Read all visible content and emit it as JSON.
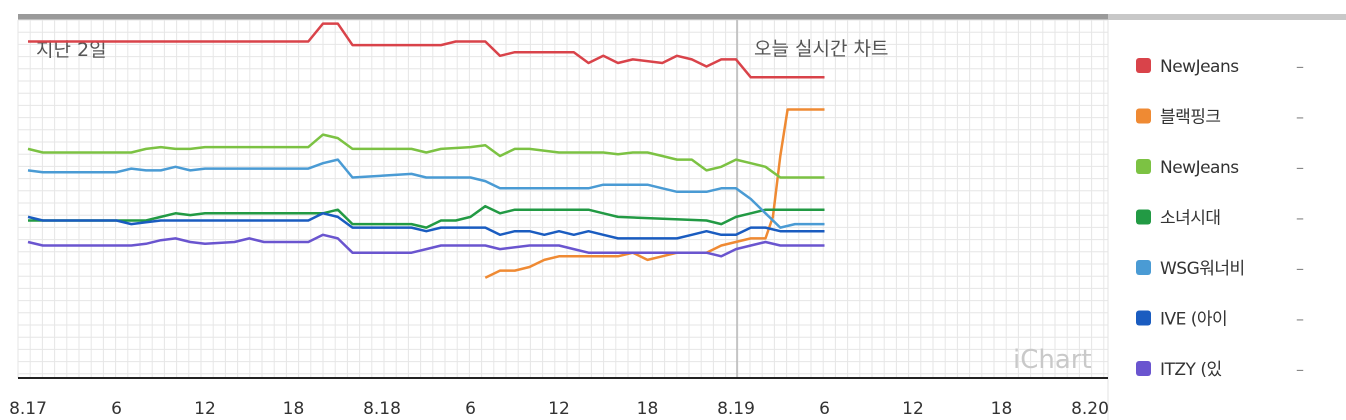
{
  "chart_data": {
    "type": "line",
    "left_label": "지난 2일",
    "center_label": "오늘 실시간 차트",
    "watermark": "iChart",
    "x_ticks": [
      "8.17",
      "6",
      "12",
      "18",
      "8.18",
      "6",
      "12",
      "18",
      "8.19",
      "6",
      "12",
      "18",
      "8.20"
    ],
    "x_unit": "hours since 8.17 00:00",
    "x_range": [
      0,
      72
    ],
    "y_range": [
      0,
      100
    ],
    "grid": true,
    "legend_position": "right",
    "series": [
      {
        "name": "NewJeans",
        "color": "#d9434a",
        "value_label": "–",
        "points": [
          [
            0,
            94
          ],
          [
            19,
            94
          ],
          [
            20,
            99
          ],
          [
            21,
            99
          ],
          [
            22,
            93
          ],
          [
            28,
            93
          ],
          [
            29,
            94
          ],
          [
            31,
            94
          ],
          [
            32,
            90
          ],
          [
            33,
            91
          ],
          [
            37,
            91
          ],
          [
            38,
            88
          ],
          [
            39,
            90
          ],
          [
            40,
            88
          ],
          [
            41,
            89
          ],
          [
            43,
            88
          ],
          [
            44,
            90
          ],
          [
            45,
            89
          ],
          [
            46,
            87
          ],
          [
            47,
            89
          ],
          [
            48,
            89
          ],
          [
            49,
            84
          ],
          [
            54,
            84
          ]
        ]
      },
      {
        "name": "블랙핑크",
        "color": "#ef8a33",
        "value_label": "–",
        "points": [
          [
            31,
            28
          ],
          [
            32,
            30
          ],
          [
            33,
            30
          ],
          [
            34,
            31
          ],
          [
            35,
            33
          ],
          [
            36,
            34
          ],
          [
            39,
            34
          ],
          [
            40,
            34
          ],
          [
            41,
            35
          ],
          [
            42,
            33
          ],
          [
            43,
            34
          ],
          [
            44,
            35
          ],
          [
            46,
            35
          ],
          [
            47,
            37
          ],
          [
            49,
            39
          ],
          [
            50,
            39
          ],
          [
            50.5,
            45
          ],
          [
            51,
            62
          ],
          [
            51.5,
            75
          ],
          [
            54,
            75
          ]
        ]
      },
      {
        "name": "NewJeans",
        "color": "#7cc243",
        "value_label": "–",
        "points": [
          [
            0,
            64
          ],
          [
            1,
            63
          ],
          [
            7,
            63
          ],
          [
            8,
            64
          ],
          [
            9,
            64.5
          ],
          [
            10,
            64
          ],
          [
            11,
            64
          ],
          [
            12,
            64.5
          ],
          [
            19,
            64.5
          ],
          [
            20,
            68
          ],
          [
            21,
            67
          ],
          [
            22,
            64
          ],
          [
            26,
            64
          ],
          [
            27,
            63
          ],
          [
            28,
            64
          ],
          [
            30,
            64.5
          ],
          [
            31,
            65
          ],
          [
            32,
            62
          ],
          [
            33,
            64
          ],
          [
            34,
            64
          ],
          [
            36,
            63
          ],
          [
            39,
            63
          ],
          [
            40,
            62.5
          ],
          [
            41,
            63
          ],
          [
            42,
            63
          ],
          [
            43,
            62
          ],
          [
            44,
            61
          ],
          [
            45,
            61
          ],
          [
            46,
            58
          ],
          [
            47,
            59
          ],
          [
            48,
            61
          ],
          [
            49,
            60
          ],
          [
            50,
            59
          ],
          [
            51,
            56
          ],
          [
            54,
            56
          ]
        ]
      },
      {
        "name": "소녀시대",
        "color": "#229a44",
        "value_label": "–",
        "points": [
          [
            0,
            44
          ],
          [
            7,
            44
          ],
          [
            8,
            44
          ],
          [
            9,
            45
          ],
          [
            10,
            46
          ],
          [
            11,
            45.5
          ],
          [
            12,
            46
          ],
          [
            20,
            46
          ],
          [
            21,
            47
          ],
          [
            22,
            43
          ],
          [
            26,
            43
          ],
          [
            27,
            42
          ],
          [
            28,
            44
          ],
          [
            29,
            44
          ],
          [
            30,
            45
          ],
          [
            31,
            48
          ],
          [
            32,
            46
          ],
          [
            33,
            47
          ],
          [
            34,
            47
          ],
          [
            38,
            47
          ],
          [
            39,
            46
          ],
          [
            40,
            45
          ],
          [
            46,
            44
          ],
          [
            47,
            43
          ],
          [
            48,
            45
          ],
          [
            49,
            46
          ],
          [
            50,
            47
          ],
          [
            54,
            47
          ]
        ]
      },
      {
        "name": "WSG워너비",
        "color": "#4a9bd4",
        "value_label": "–",
        "points": [
          [
            0,
            58
          ],
          [
            1,
            57.5
          ],
          [
            6,
            57.5
          ],
          [
            7,
            58.5
          ],
          [
            8,
            58
          ],
          [
            9,
            58
          ],
          [
            10,
            59
          ],
          [
            11,
            58
          ],
          [
            12,
            58.5
          ],
          [
            19,
            58.5
          ],
          [
            20,
            60
          ],
          [
            21,
            61
          ],
          [
            22,
            56
          ],
          [
            26,
            57
          ],
          [
            27,
            56
          ],
          [
            30,
            56
          ],
          [
            31,
            55
          ],
          [
            32,
            53
          ],
          [
            33,
            53
          ],
          [
            35,
            53
          ],
          [
            38,
            53
          ],
          [
            39,
            54
          ],
          [
            42,
            54
          ],
          [
            43,
            53
          ],
          [
            44,
            52
          ],
          [
            45,
            52
          ],
          [
            46,
            52
          ],
          [
            47,
            53
          ],
          [
            48,
            53
          ],
          [
            49,
            50
          ],
          [
            50,
            46
          ],
          [
            51,
            42
          ],
          [
            52,
            43
          ],
          [
            54,
            43
          ]
        ]
      },
      {
        "name": "IVE (아이",
        "color": "#1a5cc0",
        "value_label": "–",
        "points": [
          [
            0,
            45
          ],
          [
            1,
            44
          ],
          [
            6,
            44
          ],
          [
            7,
            43
          ],
          [
            8,
            43.5
          ],
          [
            9,
            44
          ],
          [
            19,
            44
          ],
          [
            20,
            46
          ],
          [
            21,
            45
          ],
          [
            22,
            42
          ],
          [
            26,
            42
          ],
          [
            27,
            41
          ],
          [
            28,
            42
          ],
          [
            31,
            42
          ],
          [
            32,
            40
          ],
          [
            33,
            41
          ],
          [
            34,
            41
          ],
          [
            35,
            40
          ],
          [
            36,
            41
          ],
          [
            37,
            40
          ],
          [
            38,
            41
          ],
          [
            39,
            40
          ],
          [
            40,
            39
          ],
          [
            44,
            39
          ],
          [
            45,
            40
          ],
          [
            46,
            41
          ],
          [
            47,
            40
          ],
          [
            48,
            40
          ],
          [
            49,
            42
          ],
          [
            50,
            42
          ],
          [
            51,
            41
          ],
          [
            54,
            41
          ]
        ]
      },
      {
        "name": "ITZY (있",
        "color": "#6a55cf",
        "value_label": "–",
        "points": [
          [
            0,
            38
          ],
          [
            1,
            37
          ],
          [
            7,
            37
          ],
          [
            8,
            37.5
          ],
          [
            9,
            38.5
          ],
          [
            10,
            39
          ],
          [
            11,
            38
          ],
          [
            12,
            37.5
          ],
          [
            14,
            38
          ],
          [
            15,
            39
          ],
          [
            16,
            38
          ],
          [
            19,
            38
          ],
          [
            20,
            40
          ],
          [
            21,
            39
          ],
          [
            22,
            35
          ],
          [
            26,
            35
          ],
          [
            27,
            36
          ],
          [
            28,
            37
          ],
          [
            31,
            37
          ],
          [
            32,
            36
          ],
          [
            34,
            37
          ],
          [
            36,
            37
          ],
          [
            37,
            36
          ],
          [
            38,
            35
          ],
          [
            46,
            35
          ],
          [
            47,
            34
          ],
          [
            48,
            36
          ],
          [
            49,
            37
          ],
          [
            50,
            38
          ],
          [
            51,
            37
          ],
          [
            54,
            37
          ]
        ]
      }
    ]
  }
}
